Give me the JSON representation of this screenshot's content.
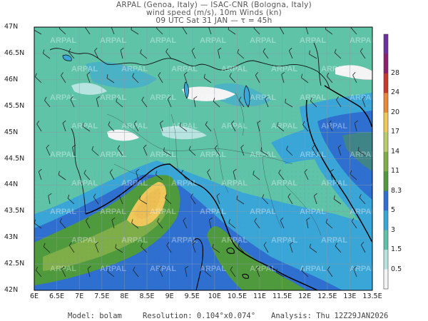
{
  "header": {
    "line1": "ARPAL (Genoa, Italy)  —  ISAC-CNR (Bologna, Italy)",
    "line2": "wind speed (m/s), 10m Winds (kn)",
    "line3": "09 UTC Sat 31 JAN  —  τ = 45h"
  },
  "latitude_labels": [
    "47N",
    "46.5N",
    "46N",
    "45.5N",
    "45N",
    "44.5N",
    "44N",
    "43.5N",
    "43N",
    "42.5N",
    "42N"
  ],
  "longitude_labels": [
    "6E",
    "6.5E",
    "7E",
    "7.5E",
    "8E",
    "8.5E",
    "9E",
    "9.5E",
    "10E",
    "10.5E",
    "11E",
    "11.5E",
    "12E",
    "12.5E",
    "13E",
    "13.5E"
  ],
  "colorbar": {
    "labels": [
      "0.5",
      "1.5",
      "3",
      "5",
      "8.3",
      "11",
      "14",
      "17",
      "20",
      "24",
      "28"
    ],
    "colors": [
      "#f4f4f4",
      "#b7e4e0",
      "#5fc3a8",
      "#3aa6d8",
      "#2e6fd0",
      "#4f9a3c",
      "#7fae48",
      "#b9cc6a",
      "#f0c75a",
      "#e7893a",
      "#c63a2a",
      "#8c1f6e",
      "#6b2fa0"
    ]
  },
  "watermark": "ARPAL",
  "footer": {
    "model": "Model: bolam",
    "resolution": "Resolution: 0.104°x0.074°",
    "analysis": "Analysis: Thu 12Z29JAN2026"
  }
}
